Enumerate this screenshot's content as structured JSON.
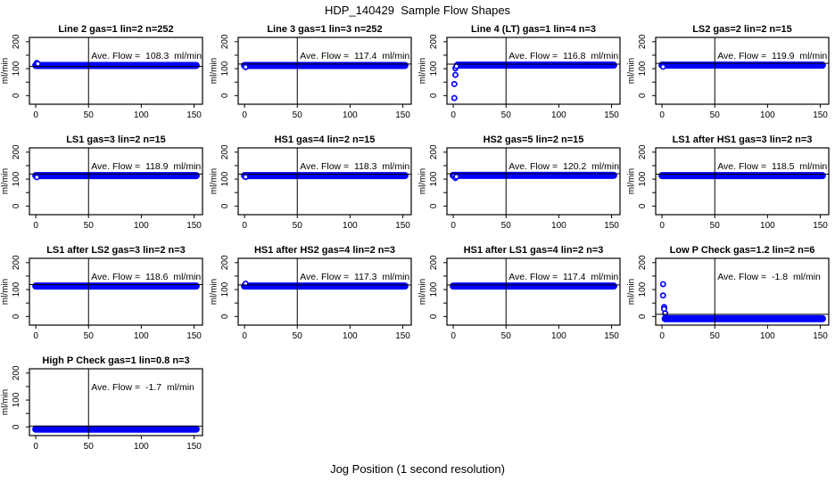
{
  "page": {
    "title": "HDP_140429  Sample Flow Shapes",
    "xlabel": "Jog Position (1 second resolution)"
  },
  "colors": {
    "point_blue": "#0000ff",
    "line_black": "#000000",
    "background": "#ffffff"
  },
  "chart_data": {
    "type": "scatter",
    "grid_layout": [
      4,
      4
    ],
    "ylabel": "ml/min",
    "x_ticks": [
      0,
      50,
      100,
      150
    ],
    "y_ticks_all": [
      0,
      50,
      100,
      150,
      200
    ],
    "y_ticks_labeled": [
      0,
      100,
      200
    ],
    "xlim": [
      -6,
      158
    ],
    "ylim": [
      -32,
      216
    ],
    "vline_x": 50,
    "ave_prefix": "Ave. Flow =",
    "ave_suffix": "ml/min",
    "plots": [
      {
        "title": "Line 2 gas=1 lin=2 n=252",
        "ave_flow": 108.3,
        "ref_line_y": 108.3,
        "band": {
          "x0": 0,
          "x1": 152,
          "y": 112
        },
        "lead_points": [
          [
            1,
            121
          ],
          [
            2,
            118
          ]
        ]
      },
      {
        "title": "Line 3 gas=1 lin=3 n=252",
        "ave_flow": 117.4,
        "ref_line_y": 117.4,
        "band": {
          "x0": 0,
          "x1": 152,
          "y": 112
        },
        "lead_points": [
          [
            1,
            106
          ]
        ]
      },
      {
        "title": "Line 4 (LT) gas=1 lin=4 n=3",
        "ave_flow": 116.8,
        "ref_line_y": 116.8,
        "band": {
          "x0": 4,
          "x1": 152,
          "y": 113
        },
        "lead_points": [
          [
            1,
            -9
          ],
          [
            1,
            43
          ],
          [
            2,
            77
          ],
          [
            2,
            101
          ],
          [
            3,
            109
          ]
        ]
      },
      {
        "title": "LS2 gas=2 lin=2 n=15",
        "ave_flow": 119.9,
        "ref_line_y": 119.9,
        "band": {
          "x0": 0,
          "x1": 152,
          "y": 113
        },
        "lead_points": [
          [
            1,
            107
          ]
        ]
      },
      {
        "title": "LS1 gas=3 lin=2 n=15",
        "ave_flow": 118.9,
        "ref_line_y": 118.9,
        "band": {
          "x0": 0,
          "x1": 152,
          "y": 113
        },
        "lead_points": [
          [
            1,
            107
          ]
        ]
      },
      {
        "title": "HS1 gas=4 lin=2 n=15",
        "ave_flow": 118.3,
        "ref_line_y": 118.3,
        "band": {
          "x0": 0,
          "x1": 152,
          "y": 113
        },
        "lead_points": [
          [
            1,
            108
          ]
        ]
      },
      {
        "title": "HS2 gas=5 lin=2 n=15",
        "ave_flow": 120.2,
        "ref_line_y": 120.2,
        "band": {
          "x0": 0,
          "x1": 152,
          "y": 114
        },
        "lead_points": [
          [
            1,
            111
          ],
          [
            2,
            104
          ],
          [
            3,
            109
          ]
        ]
      },
      {
        "title": "LS1 after HS1 gas=3 lin=2 n=3",
        "ave_flow": 118.5,
        "ref_line_y": 118.5,
        "band": {
          "x0": 0,
          "x1": 152,
          "y": 113
        },
        "lead_points": []
      },
      {
        "title": "LS1 after LS2 gas=3 lin=2 n=3",
        "ave_flow": 118.6,
        "ref_line_y": 118.6,
        "band": {
          "x0": 0,
          "x1": 152,
          "y": 113
        },
        "lead_points": []
      },
      {
        "title": "HS1 after HS2 gas=4 lin=2 n=3",
        "ave_flow": 117.3,
        "ref_line_y": 117.3,
        "band": {
          "x0": 0,
          "x1": 152,
          "y": 113
        },
        "lead_points": [
          [
            1,
            122
          ]
        ]
      },
      {
        "title": "HS1 after LS1 gas=4 lin=2 n=3",
        "ave_flow": 117.4,
        "ref_line_y": 117.4,
        "band": {
          "x0": 0,
          "x1": 152,
          "y": 113
        },
        "lead_points": []
      },
      {
        "title": "Low P Check gas=1.2 lin=2 n=6",
        "ave_flow": -1.8,
        "ref_line_y": 8,
        "band": {
          "x0": 3,
          "x1": 152,
          "y": -8
        },
        "lead_points": [
          [
            1,
            120
          ],
          [
            1,
            78
          ],
          [
            2,
            35
          ],
          [
            2,
            28
          ],
          [
            3,
            12
          ]
        ]
      },
      {
        "title": "High P Check gas=1 lin=0.8 n=3",
        "ave_flow": -1.7,
        "ref_line_y": 3,
        "band": {
          "x0": 0,
          "x1": 152,
          "y": -8
        },
        "lead_points": []
      }
    ]
  }
}
